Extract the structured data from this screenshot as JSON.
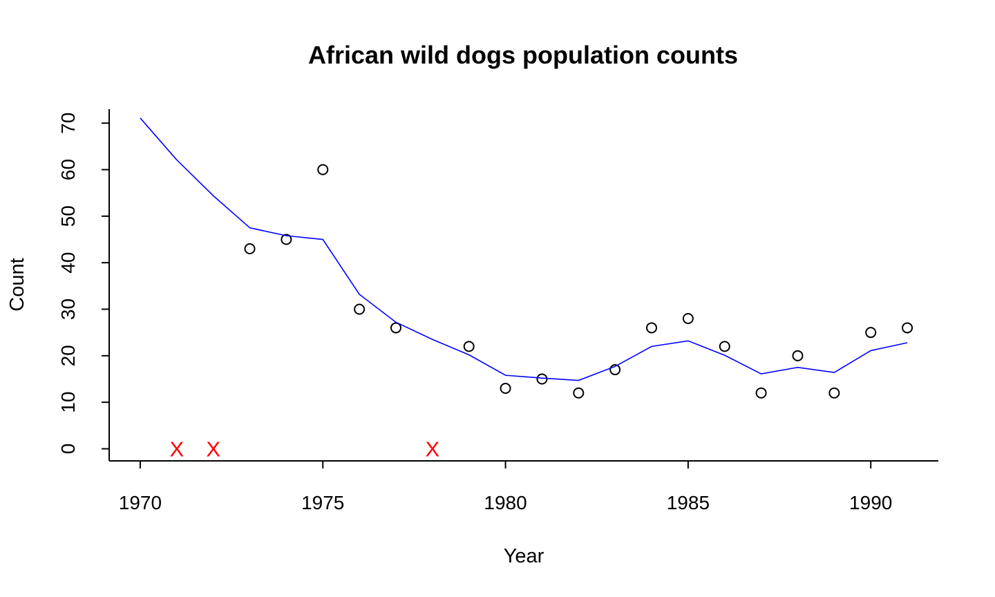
{
  "chart_data": {
    "type": "scatter",
    "title": "African wild dogs population counts",
    "xlabel": "Year",
    "ylabel": "Count",
    "xlim": [
      1969.15,
      1991.85
    ],
    "ylim": [
      -2.6,
      73
    ],
    "x_ticks": [
      1970,
      1975,
      1980,
      1985,
      1990
    ],
    "y_ticks": [
      0,
      10,
      20,
      30,
      40,
      50,
      60,
      70
    ],
    "grid": false,
    "legend": "none",
    "series": [
      {
        "kind": "points",
        "marker": "open-circle",
        "color": "#000000",
        "x": [
          1973,
          1974,
          1975,
          1976,
          1977,
          1979,
          1980,
          1981,
          1982,
          1983,
          1984,
          1985,
          1986,
          1987,
          1988,
          1989,
          1990,
          1991
        ],
        "y": [
          43,
          45,
          60,
          30,
          26,
          22,
          13,
          15,
          12,
          17,
          26,
          28,
          22,
          12,
          20,
          12,
          25,
          26
        ]
      },
      {
        "kind": "line",
        "color": "#0000ff",
        "x": [
          1970,
          1971,
          1972,
          1973,
          1974,
          1975,
          1976,
          1977,
          1978,
          1979,
          1980,
          1981,
          1982,
          1983,
          1984,
          1985,
          1986,
          1987,
          1988,
          1989,
          1990,
          1991
        ],
        "y": [
          71.1,
          62.1,
          54.4,
          47.5,
          45.8,
          45.0,
          33.2,
          27.2,
          23.5,
          20.2,
          15.8,
          15.2,
          14.7,
          17.7,
          22.0,
          23.2,
          20.1,
          16.1,
          17.5,
          16.4,
          21.1,
          22.8
        ]
      },
      {
        "kind": "markers",
        "marker": "X",
        "label": "X",
        "color": "#ff0000",
        "x": [
          1971,
          1972,
          1978
        ],
        "y": [
          0,
          0,
          0
        ]
      }
    ]
  }
}
